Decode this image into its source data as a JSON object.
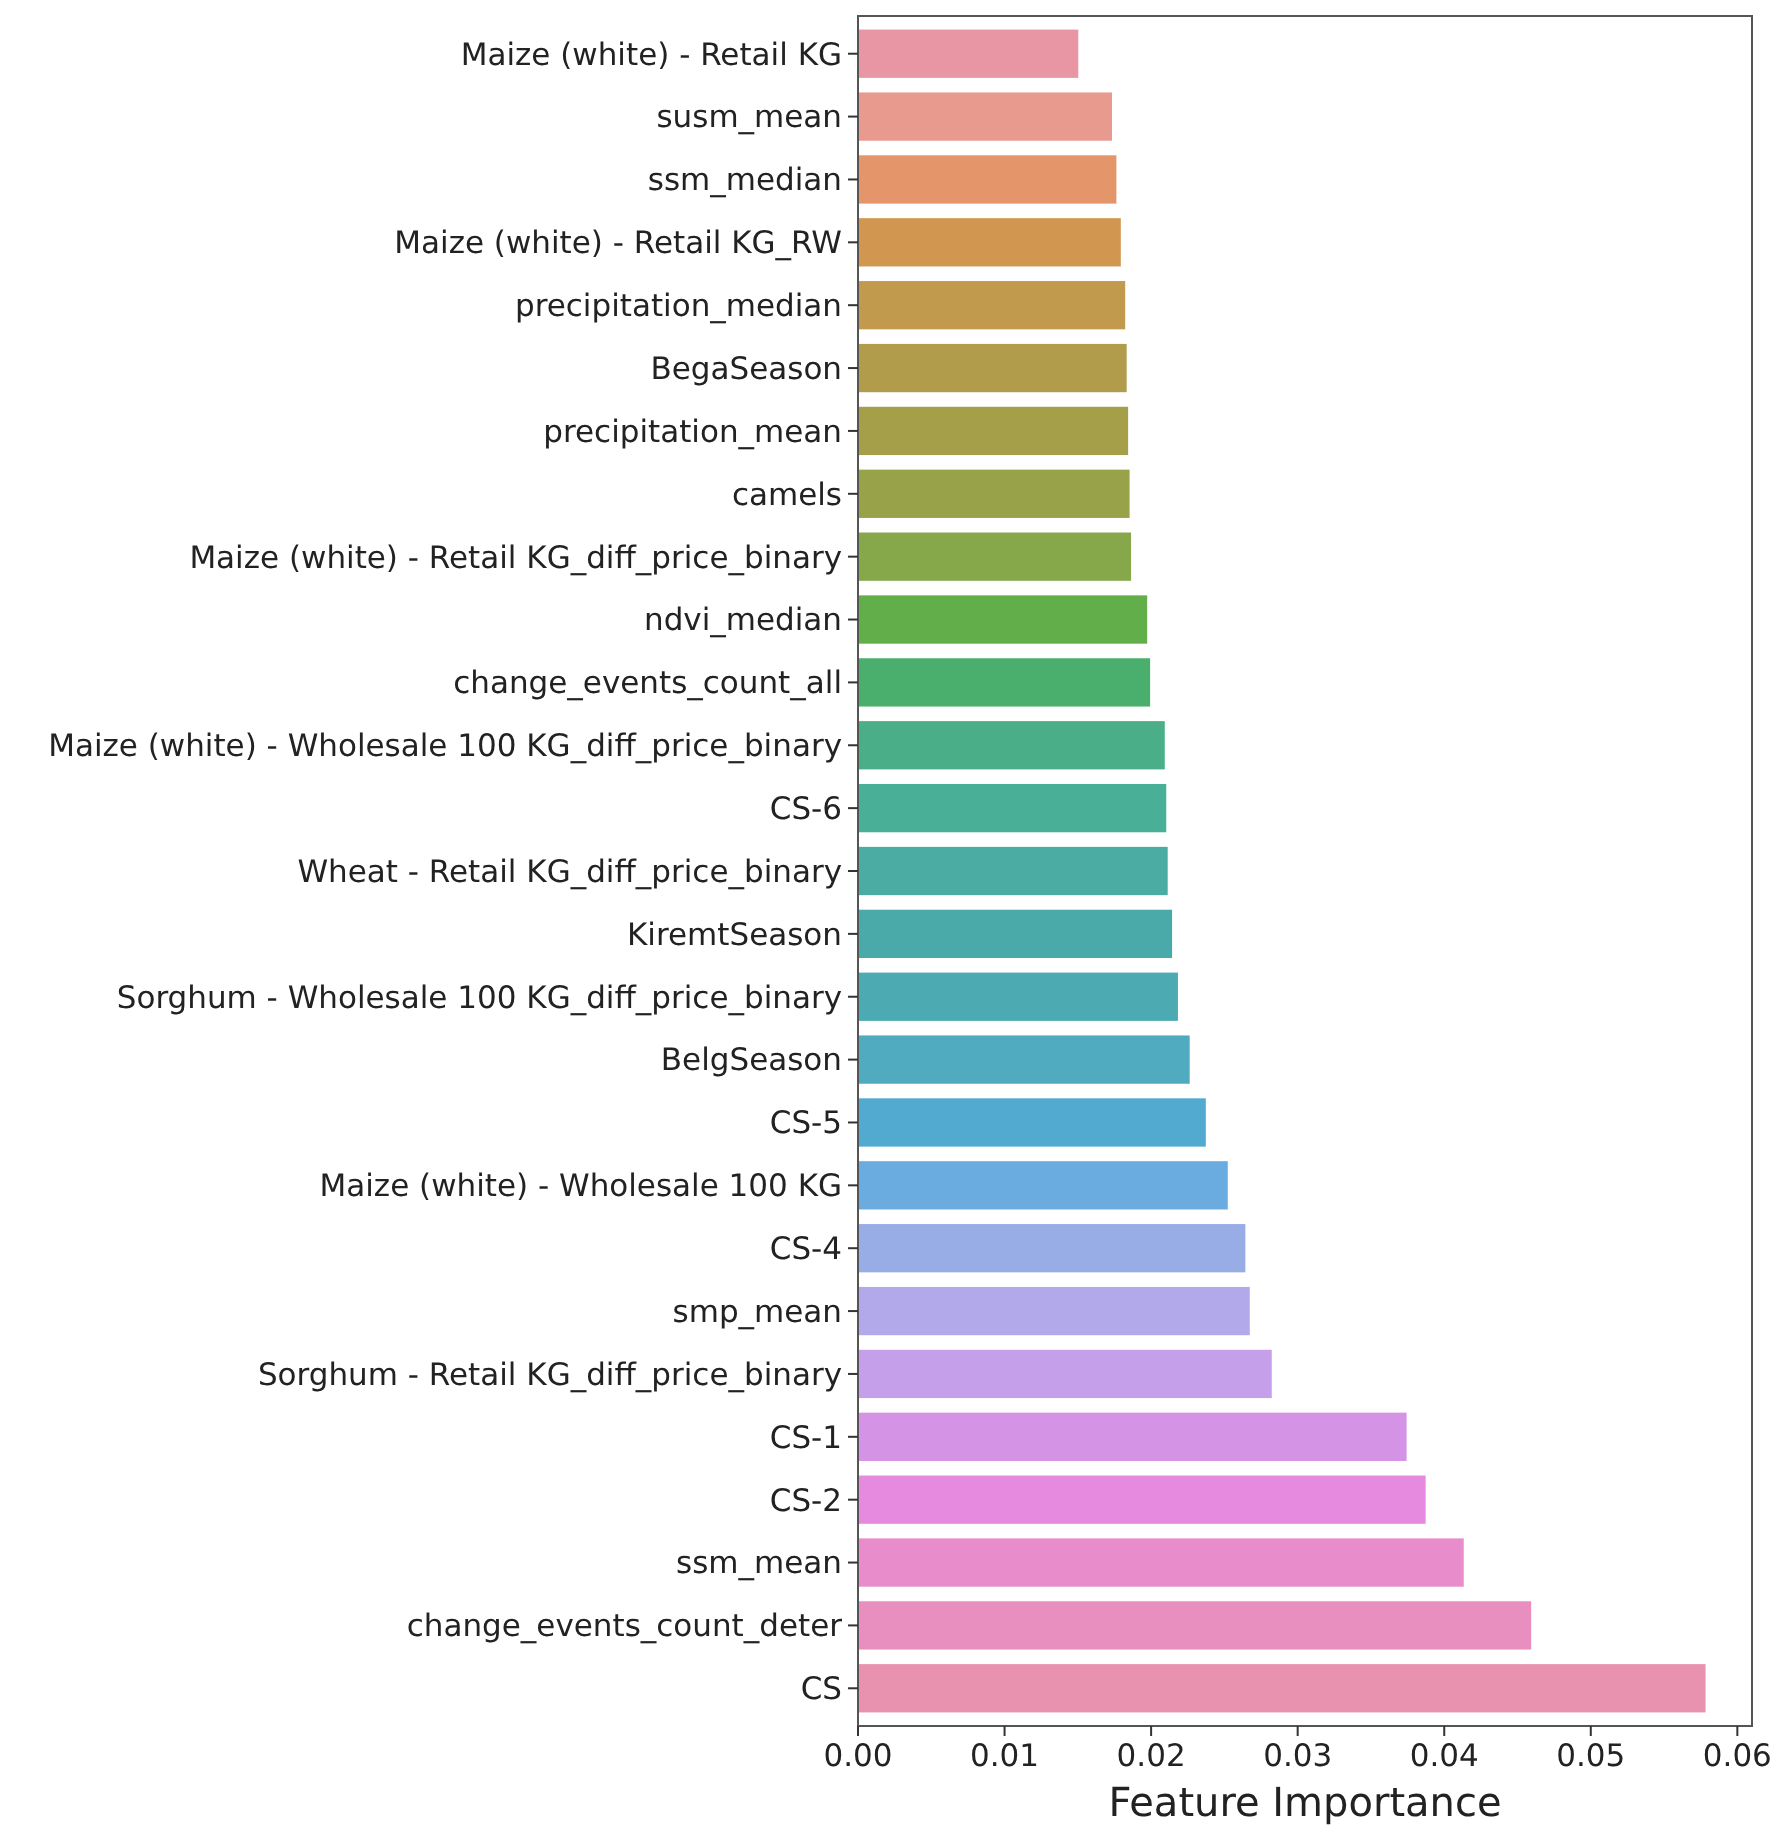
{
  "chart_data": {
    "type": "bar",
    "orientation": "horizontal",
    "xlabel": "Feature Importance",
    "categories": [
      "Maize (white) - Retail KG",
      "susm_mean",
      "ssm_median",
      "Maize (white) - Retail KG_RW",
      "precipitation_median",
      "BegaSeason",
      "precipitation_mean",
      "camels",
      "Maize (white) - Retail KG_diff_price_binary",
      "ndvi_median",
      "change_events_count_all",
      "Maize (white) - Wholesale 100 KG_diff_price_binary",
      "CS-6",
      "Wheat - Retail KG_diff_price_binary",
      "KiremtSeason",
      "Sorghum - Wholesale 100 KG_diff_price_binary",
      "BelgSeason",
      "CS-5",
      "Maize (white) - Wholesale 100 KG",
      "CS-4",
      "smp_mean",
      "Sorghum - Retail KG_diff_price_binary",
      "CS-1",
      "CS-2",
      "ssm_mean",
      "change_events_count_deter",
      "CS"
    ],
    "values": [
      0.0151,
      0.0174,
      0.0177,
      0.018,
      0.0183,
      0.0184,
      0.0185,
      0.0186,
      0.0187,
      0.0198,
      0.02,
      0.021,
      0.0211,
      0.0212,
      0.0215,
      0.0219,
      0.0227,
      0.0238,
      0.0253,
      0.0265,
      0.0268,
      0.0283,
      0.0375,
      0.0388,
      0.0414,
      0.046,
      0.0579
    ],
    "colors": [
      "#e996a4",
      "#e99a8f",
      "#e5956a",
      "#d1964f",
      "#c29a4d",
      "#b09c4a",
      "#a49f48",
      "#98a249",
      "#86a84a",
      "#62ae4a",
      "#4aae6d",
      "#4aaf88",
      "#4aaf97",
      "#4aaca2",
      "#4aaaa9",
      "#4caab2",
      "#50abc0",
      "#52aad0",
      "#6aabe0",
      "#98ace6",
      "#b1a9ea",
      "#c59fe9",
      "#d493e4",
      "#e68ae0",
      "#e88ccb",
      "#e98fbf",
      "#e892b0"
    ],
    "xlim": [
      0,
      0.061
    ],
    "xticks": [
      {
        "value": 0,
        "label": "0.00"
      },
      {
        "value": 0.01,
        "label": "0.01"
      },
      {
        "value": 0.02,
        "label": "0.02"
      },
      {
        "value": 0.03,
        "label": "0.03"
      },
      {
        "value": 0.04,
        "label": "0.04"
      },
      {
        "value": 0.05,
        "label": "0.05"
      },
      {
        "value": 0.06,
        "label": "0.06"
      }
    ],
    "grid": false
  }
}
